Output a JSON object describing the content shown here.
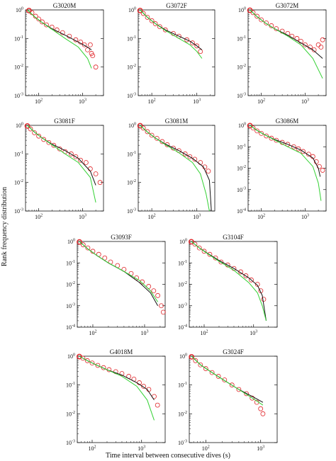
{
  "figure": {
    "xlabel": "Time interval between consecutive dives (s)",
    "ylabel": "Rank frequency distribution"
  },
  "colors": {
    "observed": "#e0262a",
    "model_black": "#111111",
    "model_green": "#33d133",
    "axis": "#111111"
  },
  "chart_data": [
    {
      "type": "scatter",
      "title": "G3020M",
      "x_scale": "log",
      "y_scale": "log",
      "xlim": [
        50,
        3000
      ],
      "ylim": [
        0.001,
        1
      ],
      "x_ticks": [
        "10^2",
        "10^3"
      ],
      "y_ticks": [
        "10^-3",
        "10^-2",
        "10^-1",
        "10^0"
      ],
      "series": [
        {
          "marker": "circle",
          "x": [
            60,
            70,
            85,
            100,
            120,
            150,
            200,
            260,
            350,
            500,
            700,
            900,
            1100,
            1300,
            1500,
            1600,
            1700,
            2000
          ],
          "y": [
            0.95,
            0.8,
            0.6,
            0.48,
            0.38,
            0.3,
            0.25,
            0.2,
            0.16,
            0.12,
            0.09,
            0.075,
            0.06,
            0.04,
            0.06,
            0.03,
            0.025,
            0.01
          ]
        },
        {
          "line": "black",
          "x": [
            55,
            80,
            120,
            200,
            400,
            800,
            1300,
            1600
          ],
          "y": [
            1,
            0.58,
            0.36,
            0.22,
            0.13,
            0.075,
            0.05,
            0.04
          ]
        },
        {
          "line": "green",
          "x": [
            55,
            80,
            120,
            200,
            400,
            800,
            1300,
            1600
          ],
          "y": [
            1,
            0.58,
            0.36,
            0.21,
            0.1,
            0.05,
            0.02,
            0.009
          ]
        }
      ]
    },
    {
      "type": "scatter",
      "title": "G3072F",
      "x_scale": "log",
      "y_scale": "log",
      "xlim": [
        50,
        2500
      ],
      "ylim": [
        0.001,
        1
      ],
      "x_ticks": [
        "10^2",
        "10^3"
      ],
      "y_ticks": [
        "10^-3",
        "10^-2",
        "10^-1",
        "10^0"
      ],
      "series": [
        {
          "marker": "circle",
          "x": [
            55,
            65,
            80,
            100,
            120,
            150,
            200,
            300,
            400,
            600,
            800,
            1000,
            1200
          ],
          "y": [
            0.95,
            0.75,
            0.55,
            0.42,
            0.33,
            0.26,
            0.2,
            0.15,
            0.12,
            0.09,
            0.07,
            0.055,
            0.035
          ]
        },
        {
          "line": "black",
          "x": [
            55,
            80,
            120,
            200,
            400,
            700,
            1000,
            1300
          ],
          "y": [
            1,
            0.55,
            0.33,
            0.2,
            0.12,
            0.08,
            0.055,
            0.04
          ]
        },
        {
          "line": "green",
          "x": [
            55,
            80,
            120,
            200,
            400,
            700,
            1000,
            1300
          ],
          "y": [
            1,
            0.55,
            0.33,
            0.19,
            0.1,
            0.06,
            0.035,
            0.02
          ]
        }
      ]
    },
    {
      "type": "scatter",
      "title": "G3072M",
      "x_scale": "log",
      "y_scale": "log",
      "xlim": [
        50,
        3000
      ],
      "ylim": [
        0.001,
        1
      ],
      "x_ticks": [
        "10^2",
        "10^3"
      ],
      "y_ticks": [
        "10^-3",
        "10^-2",
        "10^-1",
        "10^0"
      ],
      "series": [
        {
          "marker": "circle",
          "x": [
            55,
            65,
            80,
            100,
            130,
            170,
            220,
            300,
            400,
            500,
            650,
            800,
            1000,
            1300,
            1600,
            2000,
            2300,
            2500
          ],
          "y": [
            0.97,
            0.8,
            0.6,
            0.45,
            0.35,
            0.28,
            0.22,
            0.18,
            0.15,
            0.12,
            0.1,
            0.08,
            0.06,
            0.05,
            0.04,
            0.06,
            0.05,
            0.09
          ]
        },
        {
          "line": "black",
          "x": [
            55,
            80,
            120,
            200,
            400,
            800,
            1500,
            2500
          ],
          "y": [
            1,
            0.58,
            0.36,
            0.22,
            0.13,
            0.07,
            0.04,
            0.02
          ]
        },
        {
          "line": "green",
          "x": [
            55,
            80,
            120,
            200,
            400,
            800,
            1500,
            2500
          ],
          "y": [
            1,
            0.58,
            0.36,
            0.22,
            0.12,
            0.06,
            0.02,
            0.004
          ]
        }
      ]
    },
    {
      "type": "scatter",
      "title": "G3081F",
      "x_scale": "log",
      "y_scale": "log",
      "xlim": [
        50,
        3000
      ],
      "ylim": [
        0.001,
        1
      ],
      "x_ticks": [
        "10^2",
        "10^3"
      ],
      "y_ticks": [
        "10^-3",
        "10^-2",
        "10^-1",
        "10^0"
      ],
      "series": [
        {
          "marker": "circle",
          "x": [
            55,
            65,
            80,
            100,
            130,
            170,
            220,
            300,
            400,
            550,
            700,
            900,
            1200,
            1500,
            2000,
            2500
          ],
          "y": [
            0.95,
            0.75,
            0.55,
            0.42,
            0.32,
            0.25,
            0.2,
            0.15,
            0.12,
            0.1,
            0.08,
            0.06,
            0.05,
            0.03,
            0.02,
            0.01
          ]
        },
        {
          "line": "black",
          "x": [
            55,
            80,
            120,
            200,
            400,
            800,
            1500,
            2000
          ],
          "y": [
            1,
            0.58,
            0.36,
            0.22,
            0.13,
            0.07,
            0.025,
            0.008
          ]
        },
        {
          "line": "green",
          "x": [
            55,
            80,
            120,
            200,
            400,
            800,
            1500,
            2000
          ],
          "y": [
            1,
            0.58,
            0.36,
            0.21,
            0.1,
            0.05,
            0.015,
            0.002
          ]
        }
      ]
    },
    {
      "type": "scatter",
      "title": "G3081M",
      "x_scale": "log",
      "y_scale": "log",
      "xlim": [
        50,
        2500
      ],
      "ylim": [
        0.001,
        1
      ],
      "x_ticks": [
        "10^2",
        "10^3"
      ],
      "y_ticks": [
        "10^-3",
        "10^-2",
        "10^-1",
        "10^0"
      ],
      "series": [
        {
          "marker": "circle",
          "x": [
            55,
            65,
            80,
            100,
            130,
            170,
            220,
            300,
            400,
            550,
            700,
            900,
            1200,
            1500,
            1800
          ],
          "y": [
            0.97,
            0.8,
            0.6,
            0.45,
            0.35,
            0.27,
            0.21,
            0.16,
            0.13,
            0.1,
            0.08,
            0.065,
            0.05,
            0.035,
            0.025
          ]
        },
        {
          "line": "black",
          "x": [
            55,
            80,
            120,
            200,
            400,
            800,
            1400,
            1900,
            2100
          ],
          "y": [
            1,
            0.58,
            0.36,
            0.22,
            0.13,
            0.07,
            0.035,
            0.012,
            0.001
          ]
        },
        {
          "line": "green",
          "x": [
            55,
            80,
            120,
            200,
            400,
            800,
            1200,
            1600,
            1900
          ],
          "y": [
            1,
            0.58,
            0.36,
            0.21,
            0.11,
            0.05,
            0.02,
            0.004,
            0.001
          ]
        }
      ]
    },
    {
      "type": "scatter",
      "title": "G3086M",
      "x_scale": "log",
      "y_scale": "log",
      "xlim": [
        50,
        3000
      ],
      "ylim": [
        0.0001,
        1
      ],
      "x_ticks": [
        "10^2",
        "10^3"
      ],
      "y_ticks": [
        "10^-4",
        "10^-3",
        "10^-2",
        "10^-1",
        "10^0"
      ],
      "series": [
        {
          "marker": "circle",
          "x": [
            55,
            65,
            80,
            100,
            130,
            170,
            220,
            300,
            400,
            550,
            700,
            900,
            1200,
            1500,
            1800,
            2100,
            2500
          ],
          "y": [
            0.97,
            0.75,
            0.55,
            0.42,
            0.32,
            0.25,
            0.2,
            0.16,
            0.13,
            0.1,
            0.08,
            0.06,
            0.045,
            0.035,
            0.02,
            0.012,
            0.008
          ]
        },
        {
          "line": "black",
          "x": [
            55,
            80,
            120,
            200,
            400,
            800,
            1500,
            2000,
            2200
          ],
          "y": [
            1,
            0.58,
            0.36,
            0.22,
            0.13,
            0.07,
            0.03,
            0.01,
            0.004
          ]
        },
        {
          "line": "green",
          "x": [
            55,
            80,
            120,
            200,
            400,
            800,
            1500,
            2000,
            2300
          ],
          "y": [
            1,
            0.58,
            0.36,
            0.21,
            0.1,
            0.05,
            0.012,
            0.002,
            0.0003
          ]
        }
      ]
    },
    {
      "type": "scatter",
      "title": "G3093F",
      "x_scale": "log",
      "y_scale": "log",
      "xlim": [
        50,
        2500
      ],
      "ylim": [
        0.0001,
        1
      ],
      "x_ticks": [
        "10^2",
        "10^3"
      ],
      "y_ticks": [
        "10^-4",
        "10^-3",
        "10^-2",
        "10^-1",
        "10^0"
      ],
      "series": [
        {
          "marker": "circle",
          "x": [
            55,
            65,
            80,
            100,
            130,
            170,
            220,
            300,
            400,
            550,
            700,
            900,
            1200,
            1500,
            1800,
            2100,
            2300
          ],
          "y": [
            0.95,
            0.7,
            0.5,
            0.35,
            0.25,
            0.17,
            0.11,
            0.075,
            0.05,
            0.032,
            0.02,
            0.013,
            0.008,
            0.005,
            0.003,
            0.001,
            0.0005
          ]
        },
        {
          "line": "black",
          "x": [
            55,
            80,
            120,
            200,
            400,
            800,
            1300,
            1800
          ],
          "y": [
            1,
            0.45,
            0.22,
            0.1,
            0.04,
            0.012,
            0.004,
            0.001
          ]
        },
        {
          "line": "green",
          "x": [
            55,
            80,
            120,
            200,
            400,
            800,
            1300,
            1800
          ],
          "y": [
            1,
            0.45,
            0.22,
            0.1,
            0.04,
            0.015,
            0.005,
            0.0015
          ]
        }
      ]
    },
    {
      "type": "scatter",
      "title": "G3104F",
      "x_scale": "log",
      "y_scale": "log",
      "xlim": [
        50,
        3000
      ],
      "ylim": [
        0.0001,
        1
      ],
      "x_ticks": [
        "10^2",
        "10^3"
      ],
      "y_ticks": [
        "10^-4",
        "10^-3",
        "10^-2",
        "10^-1",
        "10^0"
      ],
      "series": [
        {
          "marker": "circle",
          "x": [
            55,
            65,
            80,
            100,
            130,
            170,
            220,
            300,
            400,
            550,
            700,
            900,
            1200,
            1400,
            1600
          ],
          "y": [
            0.97,
            0.75,
            0.5,
            0.35,
            0.25,
            0.17,
            0.11,
            0.08,
            0.055,
            0.038,
            0.025,
            0.016,
            0.01,
            0.005,
            0.002
          ]
        },
        {
          "line": "black",
          "x": [
            55,
            80,
            120,
            200,
            400,
            800,
            1200,
            1500,
            1800
          ],
          "y": [
            1,
            0.5,
            0.27,
            0.13,
            0.055,
            0.02,
            0.009,
            0.003,
            0.0002
          ]
        },
        {
          "line": "green",
          "x": [
            55,
            80,
            120,
            200,
            400,
            800,
            1200,
            1500,
            1800
          ],
          "y": [
            1,
            0.5,
            0.26,
            0.12,
            0.045,
            0.012,
            0.004,
            0.001,
            0.0002
          ]
        }
      ]
    },
    {
      "type": "scatter",
      "title": "G4018M",
      "x_scale": "log",
      "y_scale": "log",
      "xlim": [
        50,
        3000
      ],
      "ylim": [
        0.001,
        1
      ],
      "x_ticks": [
        "10^2",
        "10^3"
      ],
      "y_ticks": [
        "10^-3",
        "10^-2",
        "10^-1",
        "10^0"
      ],
      "series": [
        {
          "marker": "circle",
          "x": [
            55,
            65,
            80,
            100,
            130,
            170,
            220,
            300,
            400,
            550,
            700,
            900,
            1100,
            1400,
            1800,
            2100
          ],
          "y": [
            0.97,
            0.85,
            0.7,
            0.58,
            0.48,
            0.4,
            0.34,
            0.29,
            0.25,
            0.2,
            0.16,
            0.12,
            0.09,
            0.07,
            0.04,
            0.02
          ]
        },
        {
          "line": "black",
          "x": [
            55,
            80,
            120,
            200,
            400,
            800,
            1300,
            1800
          ],
          "y": [
            1,
            0.7,
            0.5,
            0.34,
            0.22,
            0.12,
            0.07,
            0.03
          ]
        },
        {
          "line": "green",
          "x": [
            55,
            80,
            120,
            200,
            400,
            800,
            1300,
            1800
          ],
          "y": [
            1,
            0.7,
            0.5,
            0.34,
            0.2,
            0.09,
            0.03,
            0.006
          ]
        }
      ]
    },
    {
      "type": "scatter",
      "title": "G3024F",
      "x_scale": "log",
      "y_scale": "log",
      "xlim": [
        50,
        2000
      ],
      "ylim": [
        0.001,
        1
      ],
      "x_ticks": [
        "10^2",
        "10^3"
      ],
      "y_ticks": [
        "10^-3",
        "10^-2",
        "10^-1",
        "10^0"
      ],
      "series": [
        {
          "marker": "circle",
          "x": [
            55,
            65,
            80,
            100,
            130,
            170,
            220,
            300,
            400,
            550,
            700,
            850,
            1000,
            1100
          ],
          "y": [
            0.95,
            0.7,
            0.5,
            0.37,
            0.27,
            0.2,
            0.15,
            0.1,
            0.07,
            0.05,
            0.035,
            0.025,
            0.015,
            0.01
          ]
        },
        {
          "line": "black",
          "x": [
            55,
            80,
            120,
            200,
            400,
            800,
            1100
          ],
          "y": [
            1,
            0.5,
            0.3,
            0.16,
            0.07,
            0.035,
            0.025
          ]
        },
        {
          "line": "green",
          "x": [
            55,
            80,
            120,
            200,
            400,
            800,
            1100
          ],
          "y": [
            1,
            0.5,
            0.3,
            0.16,
            0.07,
            0.03,
            0.02
          ]
        }
      ]
    }
  ]
}
